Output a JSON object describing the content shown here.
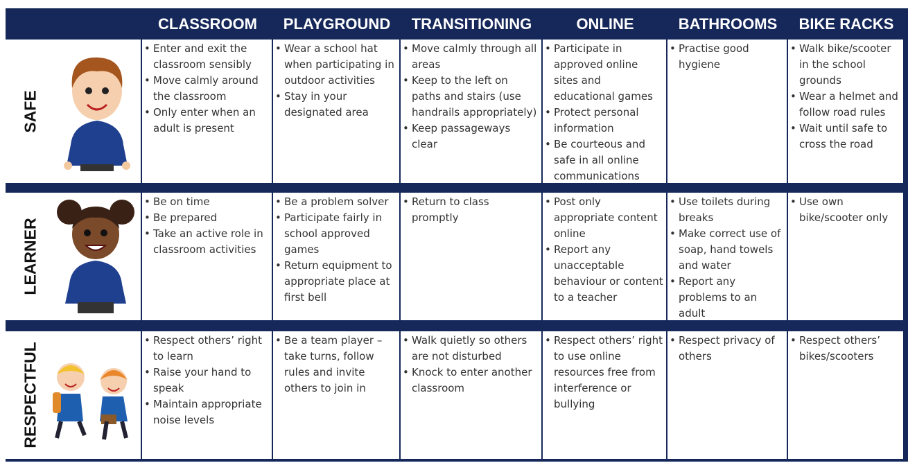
{
  "table": {
    "columns": [
      "CLASSROOM",
      "PLAYGROUND",
      "TRANSITIONING",
      "ONLINE",
      "BATHROOMS",
      "BIKE RACKS"
    ],
    "rows": [
      {
        "label": "SAFE",
        "cells": [
          [
            "Enter and exit the classroom sensibly",
            "Move calmly around the classroom",
            "Only enter when an adult is present"
          ],
          [
            "Wear a school hat when participating in outdoor activities",
            "Stay in your designated area"
          ],
          [
            "Move calmly through all areas",
            "Keep to the left on paths and stairs (use handrails appropriately)",
            "Keep passageways clear"
          ],
          [
            "Participate in approved online sites and educational games",
            "Protect personal information",
            "Be courteous and safe in all online communications"
          ],
          [
            "Practise good hygiene"
          ],
          [
            "Walk bike/scooter in the school grounds",
            "Wear a helmet and follow road rules",
            "Wait until safe to cross the road"
          ]
        ]
      },
      {
        "label": "LEARNER",
        "cells": [
          [
            "Be on time",
            "Be prepared",
            "Take an active role in classroom activities"
          ],
          [
            "Be a problem solver",
            "Participate fairly in school approved games",
            "Return equipment to appropriate place at first bell"
          ],
          [
            "Return to class promptly"
          ],
          [
            "Post only appropriate content online",
            "Report any unacceptable behaviour or content to a teacher"
          ],
          [
            "Use toilets during breaks",
            "Make correct use of soap, hand towels and water",
            "Report any problems to an adult"
          ],
          [
            "Use own bike/scooter only"
          ]
        ]
      },
      {
        "label": "RESPECTFUL",
        "cells": [
          [
            "Respect others’ right to learn",
            "Raise your hand to speak",
            "Maintain appropriate noise levels"
          ],
          [
            "Be a team player – take turns, follow rules and invite others to join in"
          ],
          [
            "Walk quietly so others are not disturbed",
            "Knock to enter another classroom"
          ],
          [
            "Respect others’ right to use online resources free from interference or bullying"
          ],
          [
            "Respect privacy of others"
          ],
          [
            "Respect others’ bikes/scooters"
          ]
        ]
      }
    ]
  }
}
